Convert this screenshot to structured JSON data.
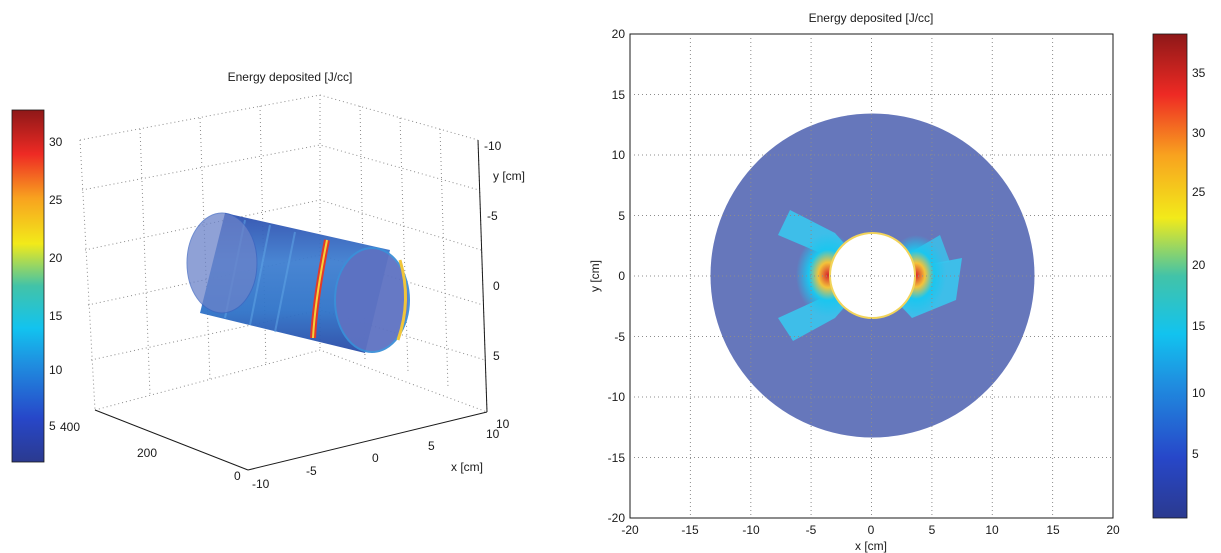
{
  "chart_data": [
    {
      "type": "surface-3d",
      "title": "Energy deposited [J/cc]",
      "xlabel": "x [cm]",
      "ylabel": "y [cm]",
      "zlabel": "",
      "x_ticks": [
        "-10",
        "-5",
        "0",
        "5",
        "10"
      ],
      "y_ticks": [
        "-10",
        "-5",
        "0",
        "5",
        "10"
      ],
      "z_ticks": [
        "0",
        "200",
        "400"
      ],
      "xlim": [
        -10,
        10
      ],
      "ylim": [
        -10,
        10
      ],
      "zlim": [
        0,
        400
      ],
      "colorbar": {
        "min": 2,
        "max": 32,
        "ticks": [
          "5",
          "10",
          "15",
          "20",
          "25",
          "30"
        ],
        "tick_values": [
          5,
          10,
          15,
          20,
          25,
          30
        ],
        "position": "left"
      },
      "cylinder": {
        "radius_cm": 4,
        "length_cm": 400,
        "body_value": 9,
        "ring_value": 30
      },
      "grid": true
    },
    {
      "type": "heatmap",
      "title": "Energy deposited [J/cc]",
      "xlabel": "x [cm]",
      "ylabel": "y [cm]",
      "x_ticks": [
        "-20",
        "-15",
        "-10",
        "-5",
        "0",
        "5",
        "10",
        "15",
        "20"
      ],
      "y_ticks": [
        "20",
        "15",
        "10",
        "5",
        "0",
        "-5",
        "-10",
        "-15",
        "-20"
      ],
      "xlim": [
        -20,
        20
      ],
      "ylim": [
        -20,
        20
      ],
      "colorbar": {
        "min": 0,
        "max": 38,
        "ticks": [
          "35",
          "30",
          "25",
          "20",
          "15",
          "10",
          "5"
        ],
        "tick_values": [
          35,
          30,
          25,
          20,
          15,
          10,
          5
        ],
        "position": "right"
      },
      "disk": {
        "outer_radius_cm": 13.5,
        "inner_radius_cm": 3.7,
        "background_value": 4,
        "peak_value": 37
      },
      "grid": true
    }
  ],
  "colors": {
    "colormap": [
      "#00008f",
      "#0000ff",
      "#00ffff",
      "#ffff00",
      "#ff0000",
      "#800000"
    ],
    "grid": "#8c8c8c",
    "axis": "#1a1a1a"
  }
}
